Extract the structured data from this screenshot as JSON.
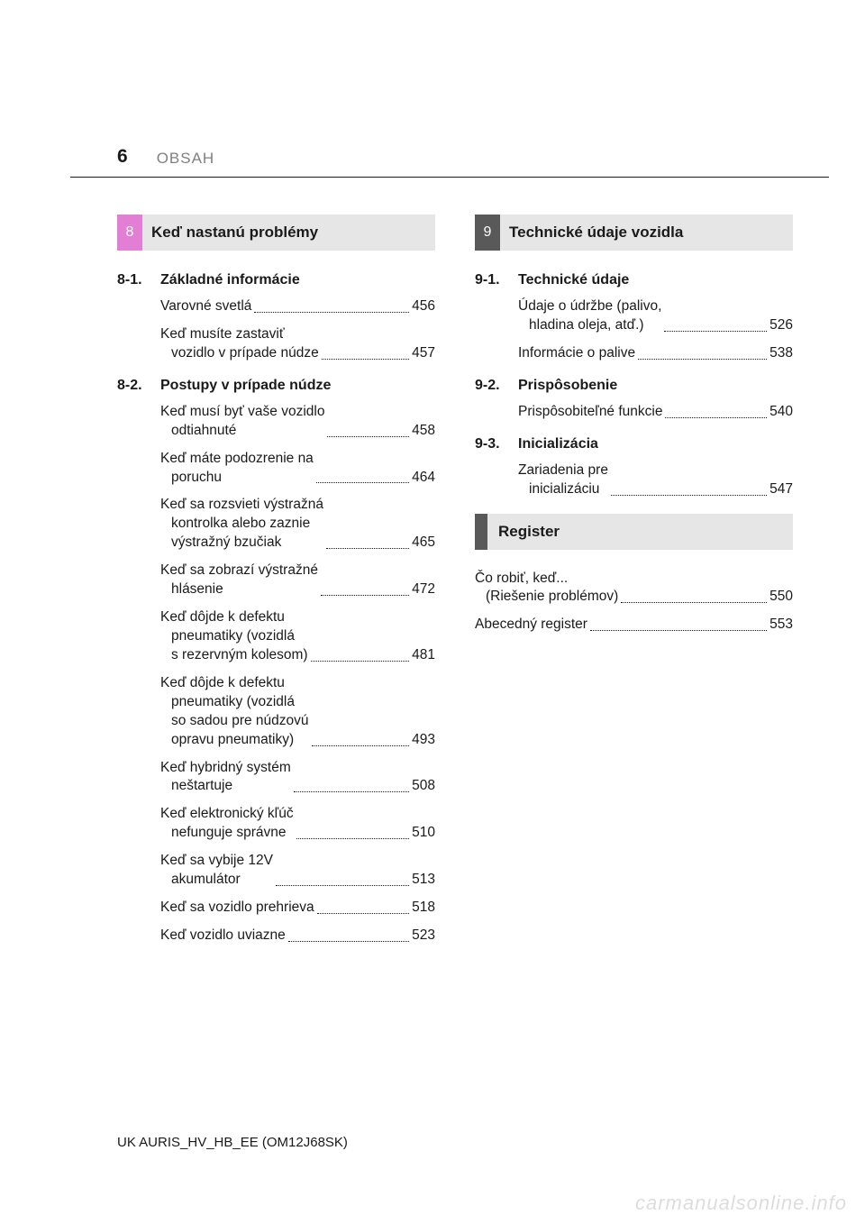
{
  "header": {
    "page_number": "6",
    "section_label": "OBSAH"
  },
  "left": {
    "chapter_num": "8",
    "chapter_title": "Keď nastanú problémy",
    "chapter_color": "#e27fd5",
    "sections": [
      {
        "num": "8-1.",
        "title": "Základné informácie",
        "entries": [
          {
            "lines": [
              "Varovné svetlá"
            ],
            "page": "456"
          },
          {
            "lines": [
              "Keď musíte zastaviť",
              "vozidlo v prípade núdze"
            ],
            "page": "457"
          }
        ]
      },
      {
        "num": "8-2.",
        "title": "Postupy v prípade núdze",
        "entries": [
          {
            "lines": [
              "Keď musí byť vaše vozidlo",
              "odtiahnuté"
            ],
            "page": "458"
          },
          {
            "lines": [
              "Keď máte podozrenie na",
              "poruchu"
            ],
            "page": "464"
          },
          {
            "lines": [
              "Keď sa rozsvieti výstražná",
              "kontrolka alebo zaznie",
              "výstražný bzučiak"
            ],
            "page": "465"
          },
          {
            "lines": [
              "Keď sa zobrazí výstražné",
              "hlásenie"
            ],
            "page": "472"
          },
          {
            "lines": [
              "Keď dôjde k defektu",
              "pneumatiky (vozidlá",
              "s rezervným kolesom)"
            ],
            "page": "481"
          },
          {
            "lines": [
              "Keď dôjde k defektu",
              "pneumatiky (vozidlá",
              "so sadou pre núdzovú",
              "opravu pneumatiky)"
            ],
            "page": "493"
          },
          {
            "lines": [
              "Keď hybridný systém",
              "neštartuje"
            ],
            "page": "508"
          },
          {
            "lines": [
              "Keď elektronický kľúč",
              "nefunguje správne"
            ],
            "page": "510"
          },
          {
            "lines": [
              "Keď sa vybije 12V",
              "akumulátor"
            ],
            "page": "513"
          },
          {
            "lines": [
              "Keď sa vozidlo prehrieva"
            ],
            "page": "518"
          },
          {
            "lines": [
              "Keď vozidlo uviazne"
            ],
            "page": "523"
          }
        ]
      }
    ]
  },
  "right": {
    "chapter_num": "9",
    "chapter_title": "Technické údaje vozidla",
    "chapter_color": "#595959",
    "sections": [
      {
        "num": "9-1.",
        "title": "Technické údaje",
        "entries": [
          {
            "lines": [
              "Údaje o údržbe (palivo,",
              "hladina oleja, atď.)"
            ],
            "page": "526"
          },
          {
            "lines": [
              "Informácie o palive"
            ],
            "page": "538"
          }
        ]
      },
      {
        "num": "9-2.",
        "title": "Prispôsobenie",
        "entries": [
          {
            "lines": [
              "Prispôsobiteľné funkcie"
            ],
            "page": "540"
          }
        ]
      },
      {
        "num": "9-3.",
        "title": "Inicializácia",
        "entries": [
          {
            "lines": [
              "Zariadenia pre",
              "inicializáciu"
            ],
            "page": "547"
          }
        ]
      }
    ],
    "register": {
      "title": "Register",
      "entries": [
        {
          "lines": [
            "Čo robiť, keď...",
            "(Riešenie problémov)"
          ],
          "page": "550"
        },
        {
          "lines": [
            "Abecedný register"
          ],
          "page": "553"
        }
      ]
    }
  },
  "footer": "UK AURIS_HV_HB_EE (OM12J68SK)",
  "watermark": "carmanualsonline.info"
}
